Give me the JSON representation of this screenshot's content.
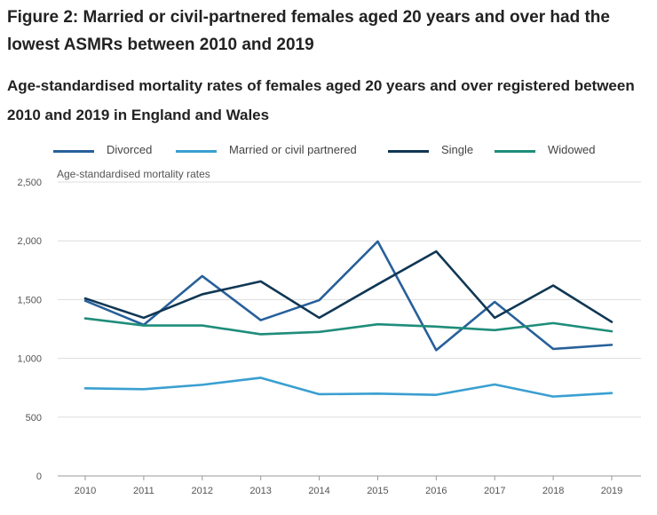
{
  "figure": {
    "title": "Figure 2: Married or civil-partnered females aged 20 years and over had the lowest ASMRs between 2010 and 2019",
    "subtitle": "Age-standardised mortality rates of females aged 20 years and over registered between 2010 and 2019 in England and Wales"
  },
  "legend": [
    {
      "label": "Divorced",
      "color": "#27609a"
    },
    {
      "label": "Married or civil partnered",
      "color": "#3a9fd1"
    },
    {
      "label": "Single",
      "color": "#0f3754"
    },
    {
      "label": "Widowed",
      "color": "#1f8d7a"
    }
  ],
  "chart_data": {
    "type": "line",
    "title": "Figure 2: Married or civil-partnered females aged 20 years and over had the lowest ASMRs between 2010 and 2019",
    "subtitle": "Age-standardised mortality rates of females aged 20 years and over registered between 2010 and 2019 in England and Wales",
    "xlabel": "",
    "ylabel": "Age-standardised mortality rates",
    "x": [
      "2010",
      "2011",
      "2012",
      "2013",
      "2014",
      "2015",
      "2016",
      "2017",
      "2018",
      "2019"
    ],
    "ylim": [
      0,
      2500
    ],
    "yticks": [
      "0",
      "500",
      "1,000",
      "1,500",
      "2,000",
      "2,500"
    ],
    "ytick_values": [
      0,
      500,
      1000,
      1500,
      2000,
      2500
    ],
    "grid": true,
    "legend_position": "top",
    "series": [
      {
        "name": "Divorced",
        "color": "#27609a",
        "values": [
          1490,
          1285,
          1700,
          1325,
          1495,
          1995,
          1070,
          1480,
          1080,
          1115
        ]
      },
      {
        "name": "Married or civil partnered",
        "color": "#3a9fd1",
        "values": [
          745,
          738,
          775,
          835,
          695,
          700,
          690,
          778,
          675,
          705
        ]
      },
      {
        "name": "Single",
        "color": "#0f3754",
        "values": [
          1510,
          1345,
          1545,
          1655,
          1345,
          1630,
          1910,
          1345,
          1620,
          1310
        ]
      },
      {
        "name": "Widowed",
        "color": "#1f8d7a",
        "values": [
          1340,
          1280,
          1280,
          1205,
          1225,
          1290,
          1270,
          1240,
          1300,
          1230
        ]
      }
    ]
  }
}
